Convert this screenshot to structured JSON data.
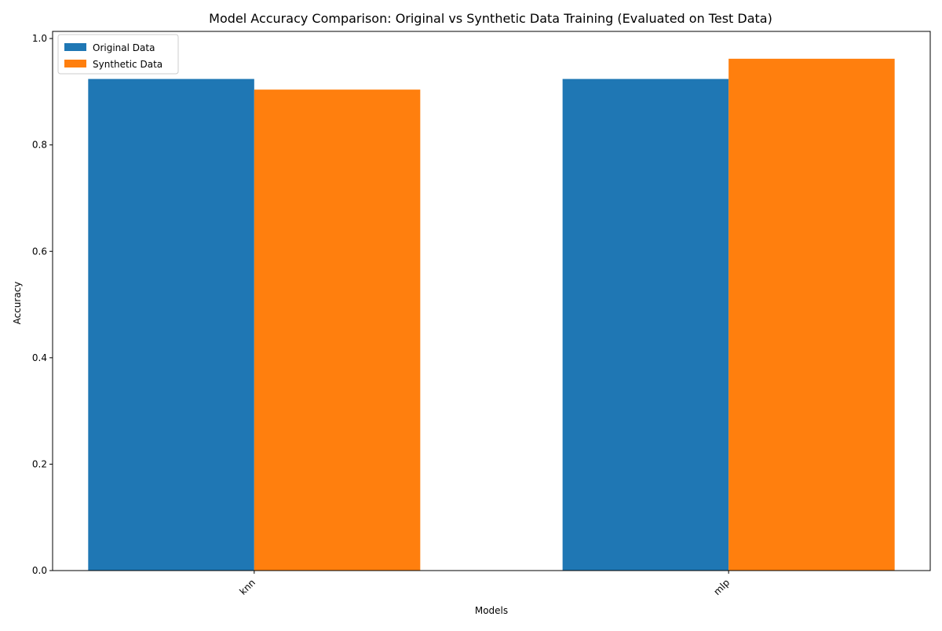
{
  "chart_data": {
    "type": "bar",
    "title": "Model Accuracy Comparison: Original vs Synthetic Data Training (Evaluated on Test Data)",
    "xlabel": "Models",
    "ylabel": "Accuracy",
    "categories": [
      "knn",
      "mlp"
    ],
    "series": [
      {
        "name": "Original Data",
        "values": [
          0.924,
          0.924
        ],
        "color": "#1f77b4"
      },
      {
        "name": "Synthetic Data",
        "values": [
          0.904,
          0.962
        ],
        "color": "#ff7f0e"
      }
    ],
    "ylim": [
      0,
      1.0
    ],
    "yticks": [
      "0.0",
      "0.2",
      "0.4",
      "0.6",
      "0.8",
      "1.0"
    ],
    "grid": false,
    "legend": "top-left",
    "xtick_rotation": "45 degrees"
  }
}
